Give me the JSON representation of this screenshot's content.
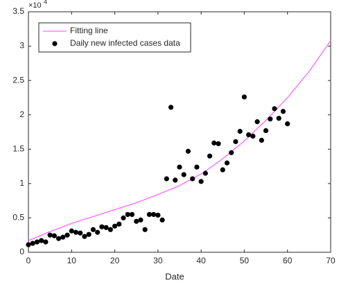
{
  "chart_data": {
    "type": "line",
    "xlabel": "Date",
    "y_scale_base": "×10",
    "y_scale_power": "4",
    "xlim": [
      0,
      70
    ],
    "xticks": [
      0,
      10,
      20,
      30,
      40,
      50,
      60,
      70
    ],
    "ylim": [
      0,
      3.5
    ],
    "yticks": [
      0,
      0.5,
      1,
      1.5,
      2,
      2.5,
      3,
      3.5
    ],
    "grid": false,
    "legend": "upper left",
    "series": [
      {
        "name": "Fitting line",
        "type": "line",
        "color": "#ff66ff",
        "x": [
          0,
          5,
          10,
          15,
          20,
          25,
          30,
          35,
          40,
          45,
          50,
          55,
          60,
          65,
          70
        ],
        "values": [
          0.17,
          0.3,
          0.42,
          0.52,
          0.62,
          0.72,
          0.84,
          0.97,
          1.14,
          1.36,
          1.62,
          1.92,
          2.25,
          2.63,
          3.08
        ]
      },
      {
        "name": "Daily new infected cases data",
        "type": "scatter",
        "color": "#000000",
        "x": [
          0,
          1,
          2,
          3,
          4,
          5,
          6,
          7,
          8,
          9,
          10,
          11,
          12,
          13,
          14,
          15,
          16,
          17,
          18,
          19,
          20,
          21,
          22,
          23,
          24,
          25,
          26,
          27,
          28,
          29,
          30,
          31,
          32,
          33,
          34,
          35,
          36,
          37,
          38,
          39,
          40,
          41,
          42,
          43,
          44,
          45,
          46,
          47,
          48,
          49,
          50,
          51,
          52,
          53,
          54,
          55,
          56,
          57,
          58,
          59,
          60
        ],
        "values": [
          0.11,
          0.13,
          0.15,
          0.17,
          0.15,
          0.25,
          0.24,
          0.2,
          0.22,
          0.25,
          0.31,
          0.29,
          0.28,
          0.23,
          0.26,
          0.33,
          0.29,
          0.37,
          0.36,
          0.33,
          0.38,
          0.41,
          0.5,
          0.55,
          0.55,
          0.45,
          0.47,
          0.33,
          0.55,
          0.55,
          0.54,
          0.47,
          1.07,
          2.11,
          1.05,
          1.24,
          1.13,
          1.47,
          1.07,
          1.24,
          1.03,
          1.15,
          1.4,
          1.59,
          1.58,
          1.2,
          1.3,
          1.45,
          1.61,
          1.76,
          2.26,
          1.71,
          1.69,
          1.9,
          1.63,
          1.77,
          1.94,
          2.09,
          1.95,
          2.05,
          1.87
        ]
      }
    ]
  }
}
